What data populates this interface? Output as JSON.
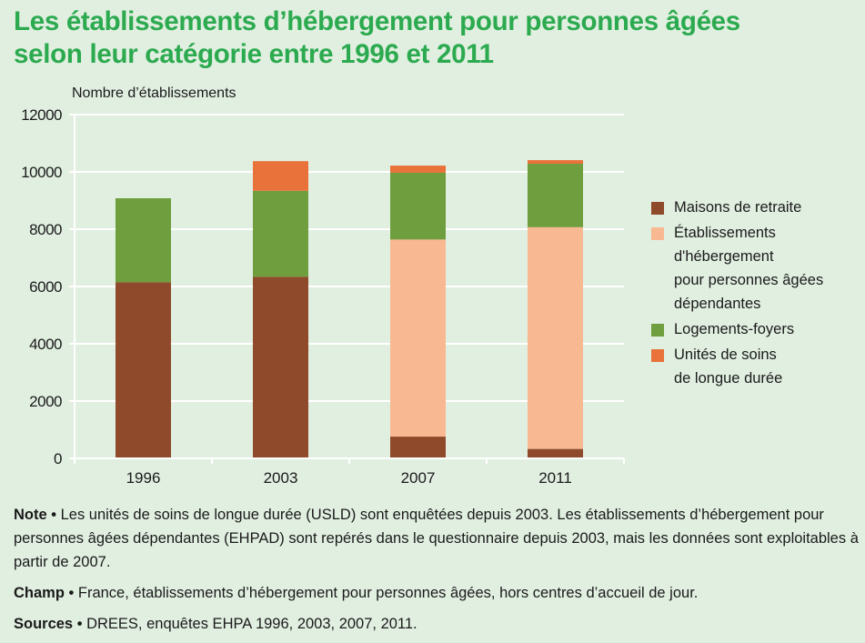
{
  "title": {
    "line1": "Les établissements d’hébergement pour personnes âgées",
    "line2": "selon leur catégorie entre 1996 et 2011"
  },
  "chart_data": {
    "type": "bar",
    "stacked": true,
    "title": "Les établissements d’hébergement pour personnes âgées selon leur catégorie entre 1996 et 2011",
    "ylabel": "Nombre d’établissements",
    "xlabel": "",
    "categories": [
      "1996",
      "2003",
      "2007",
      "2011"
    ],
    "ylim": [
      0,
      12000
    ],
    "yticks": [
      0,
      2000,
      4000,
      6000,
      8000,
      10000,
      12000
    ],
    "ytick_labels": [
      "0",
      "2000",
      "4000",
      "6000",
      "8000",
      "10000",
      "12000"
    ],
    "grid": true,
    "legend_position": "right",
    "series": [
      {
        "name": "Maisons de retraite",
        "color": "#8e4a2a",
        "values": [
          6150,
          6340,
          760,
          330
        ]
      },
      {
        "name": "Établissements d'hébergement pour personnes âgées dépendantes",
        "color": "#f8b891",
        "values": [
          0,
          0,
          6880,
          7740
        ]
      },
      {
        "name": "Logements-foyers",
        "color": "#6e9e3e",
        "values": [
          2930,
          3000,
          2330,
          2215
        ]
      },
      {
        "name": "Unités de soins de longue durée",
        "color": "#e8723a",
        "values": [
          0,
          1035,
          250,
          125
        ]
      }
    ]
  },
  "legend": [
    {
      "lines": [
        "Maisons de retraite"
      ],
      "color": "#8e4a2a"
    },
    {
      "lines": [
        "Établissements",
        "d'hébergement",
        "pour personnes âgées",
        "dépendantes"
      ],
      "color": "#f8b891"
    },
    {
      "lines": [
        "Logements-foyers"
      ],
      "color": "#6e9e3e"
    },
    {
      "lines": [
        "Unités de soins",
        "de longue durée"
      ],
      "color": "#e8723a"
    }
  ],
  "notes": {
    "note_label": "Note •",
    "note_text": " Les unités de soins de longue durée (USLD) sont enquêtées depuis 2003. Les établissements d’hébergement pour personnes âgées dépendantes (EHPAD) sont repérés dans le questionnaire depuis 2003, mais les données sont exploitables à partir de 2007.",
    "champ_label": "Champ •",
    "champ_text": " France, établissements d’hébergement pour personnes âgées, hors centres d’accueil de jour.",
    "sources_label": "Sources •",
    "sources_text": " DREES, enquêtes EHPA 1996, 2003, 2007, 2011."
  }
}
